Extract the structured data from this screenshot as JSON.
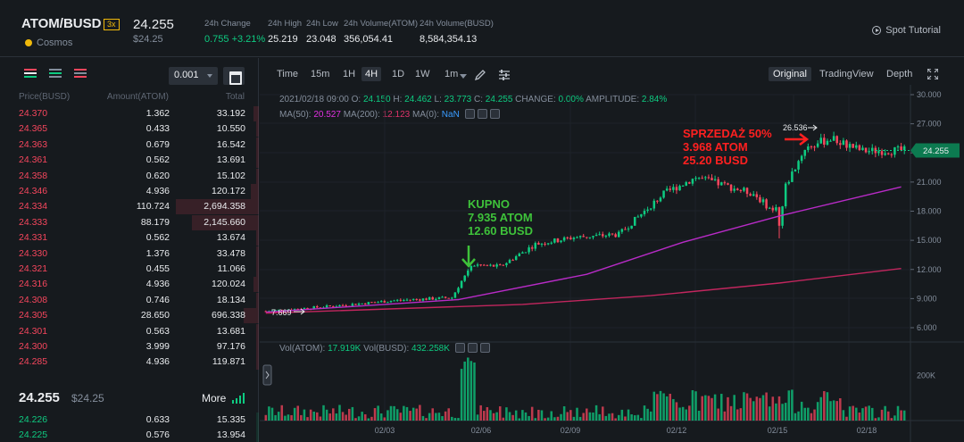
{
  "header": {
    "pair": "ATOM/BUSD",
    "leverage": "3x",
    "coin_name": "Cosmos",
    "last_price": "24.255",
    "last_price_usd": "$24.25",
    "stats": [
      {
        "label": "24h Change",
        "value": "0.755 +3.21%"
      },
      {
        "label": "24h High",
        "value": "25.219"
      },
      {
        "label": "24h Low",
        "value": "23.048"
      },
      {
        "label": "24h Volume(ATOM)",
        "value": "356,054.41"
      },
      {
        "label": "24h Volume(BUSD)",
        "value": "8,584,354.13"
      }
    ],
    "tutorial": "Spot Tutorial"
  },
  "orderbook": {
    "decimals": "0.001",
    "columns": {
      "price": "Price(BUSD)",
      "amount": "Amount(ATOM)",
      "total": "Total"
    },
    "asks": [
      {
        "price": "24.370",
        "amount": "1.362",
        "total": "33.192",
        "depth": 0.02
      },
      {
        "price": "24.365",
        "amount": "0.433",
        "total": "10.550",
        "depth": 0.01
      },
      {
        "price": "24.363",
        "amount": "0.679",
        "total": "16.542",
        "depth": 0.01
      },
      {
        "price": "24.361",
        "amount": "0.562",
        "total": "13.691",
        "depth": 0.01
      },
      {
        "price": "24.358",
        "amount": "0.620",
        "total": "15.102",
        "depth": 0.01
      },
      {
        "price": "24.346",
        "amount": "4.936",
        "total": "120.172",
        "depth": 0.03
      },
      {
        "price": "24.334",
        "amount": "110.724",
        "total": "2,694.358",
        "depth": 0.32
      },
      {
        "price": "24.333",
        "amount": "88.179",
        "total": "2,145.660",
        "depth": 0.26
      },
      {
        "price": "24.331",
        "amount": "0.562",
        "total": "13.674",
        "depth": 0.01
      },
      {
        "price": "24.330",
        "amount": "1.376",
        "total": "33.478",
        "depth": 0.01
      },
      {
        "price": "24.321",
        "amount": "0.455",
        "total": "11.066",
        "depth": 0.01
      },
      {
        "price": "24.316",
        "amount": "4.936",
        "total": "120.024",
        "depth": 0.02
      },
      {
        "price": "24.308",
        "amount": "0.746",
        "total": "18.134",
        "depth": 0.01
      },
      {
        "price": "24.305",
        "amount": "28.650",
        "total": "696.338",
        "depth": 0.06
      },
      {
        "price": "24.301",
        "amount": "0.563",
        "total": "13.681",
        "depth": 0.01
      },
      {
        "price": "24.300",
        "amount": "3.999",
        "total": "97.176",
        "depth": 0.01
      },
      {
        "price": "24.285",
        "amount": "4.936",
        "total": "119.871",
        "depth": 0.01
      }
    ],
    "mid_price": "24.255",
    "mid_price_usd": "$24.25",
    "more_label": "More",
    "bids": [
      {
        "price": "24.226",
        "amount": "0.633",
        "total": "15.335",
        "depth": 0.01
      },
      {
        "price": "24.225",
        "amount": "0.576",
        "total": "13.954",
        "depth": 0.01
      }
    ]
  },
  "chart_toolbar": {
    "intervals": [
      "Time",
      "15m",
      "1H",
      "4H",
      "1D",
      "1W",
      "1m"
    ],
    "active_interval": "4H",
    "views": [
      "Original",
      "TradingView",
      "Depth"
    ],
    "active_view": "Original"
  },
  "chart_data": {
    "type": "candlestick",
    "interval": "4H",
    "ohlc_info": {
      "date": "2021/02/18 09:00",
      "open": "24.150",
      "high": "24.462",
      "low": "23.773",
      "close": "24.255",
      "change": "0.00%",
      "amplitude": "2.84%"
    },
    "ma": {
      "ma50": "20.527",
      "ma200": "12.123",
      "ma0": "NaN"
    },
    "y_ticks": [
      "30.000",
      "27.000",
      "24.000",
      "21.000",
      "18.000",
      "15.000",
      "12.000",
      "9.000",
      "6.000"
    ],
    "ylim": [
      6,
      30
    ],
    "x_ticks": [
      "02/03",
      "02/06",
      "02/09",
      "02/12",
      "02/15",
      "02/18"
    ],
    "current_price_label": "24.255",
    "low_marker": "7.669",
    "high_marker": "26.536",
    "annotations": {
      "buy": [
        "KUPNO",
        "7.935 ATOM",
        "12.60 BUSD"
      ],
      "sell": [
        "SPRZEDAŻ 50%",
        "3.968 ATOM",
        "25.20 BUSD"
      ]
    },
    "volume": {
      "vol_atom": "17.919K",
      "vol_busd": "432.258K",
      "y_tick": "200K",
      "ylim": [
        0,
        300
      ]
    },
    "anchors": [
      {
        "i": 0,
        "p": 7.7
      },
      {
        "i": 20,
        "p": 8.2
      },
      {
        "i": 40,
        "p": 8.8
      },
      {
        "i": 58,
        "p": 9.1
      },
      {
        "i": 64,
        "p": 12.5
      },
      {
        "i": 73,
        "p": 12.3
      },
      {
        "i": 84,
        "p": 14.6
      },
      {
        "i": 96,
        "p": 15.3
      },
      {
        "i": 110,
        "p": 15.6
      },
      {
        "i": 124,
        "p": 19.8
      },
      {
        "i": 134,
        "p": 21.5
      },
      {
        "i": 152,
        "p": 19.8
      },
      {
        "i": 158,
        "p": 18.0
      },
      {
        "i": 168,
        "p": 24.5
      },
      {
        "i": 176,
        "p": 25.5
      },
      {
        "i": 186,
        "p": 24.2
      },
      {
        "i": 198,
        "p": 24.25
      }
    ],
    "ma50_path": [
      [
        0,
        7.6
      ],
      [
        60,
        8.9
      ],
      [
        100,
        11.5
      ],
      [
        130,
        14.8
      ],
      [
        160,
        17.5
      ],
      [
        198,
        20.5
      ]
    ],
    "ma200_path": [
      [
        0,
        7.5
      ],
      [
        80,
        8.4
      ],
      [
        120,
        9.3
      ],
      [
        160,
        10.6
      ],
      [
        198,
        12.1
      ]
    ]
  },
  "colors": {
    "up": "#0ecb81",
    "down": "#f6465d",
    "accent": "#f0b90b",
    "ma50": "#b82bc7",
    "ma200": "#c2265e",
    "annotation_buy": "#3ec23a",
    "annotation_sell": "#ff2020"
  }
}
